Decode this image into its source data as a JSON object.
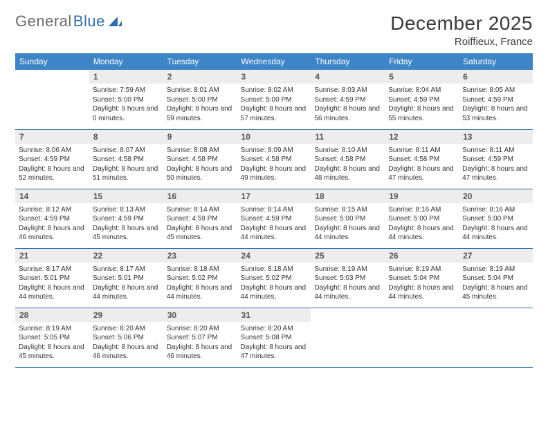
{
  "logo": {
    "part1": "General",
    "part2": "Blue"
  },
  "title": "December 2025",
  "location": "Roiffieux, France",
  "colors": {
    "header_bg": "#3d85c6",
    "header_text": "#ffffff",
    "row_border": "#2f6fb0",
    "daynum_bg": "#ededed",
    "daynum_text": "#555555",
    "body_text": "#333333",
    "logo_gray": "#6a6a6a",
    "logo_blue": "#2f6fb0",
    "page_bg": "#ffffff"
  },
  "weekdays": [
    "Sunday",
    "Monday",
    "Tuesday",
    "Wednesday",
    "Thursday",
    "Friday",
    "Saturday"
  ],
  "weeks": [
    [
      null,
      {
        "n": "1",
        "sr": "7:59 AM",
        "ss": "5:00 PM",
        "dl": "9 hours and 0 minutes."
      },
      {
        "n": "2",
        "sr": "8:01 AM",
        "ss": "5:00 PM",
        "dl": "8 hours and 59 minutes."
      },
      {
        "n": "3",
        "sr": "8:02 AM",
        "ss": "5:00 PM",
        "dl": "8 hours and 57 minutes."
      },
      {
        "n": "4",
        "sr": "8:03 AM",
        "ss": "4:59 PM",
        "dl": "8 hours and 56 minutes."
      },
      {
        "n": "5",
        "sr": "8:04 AM",
        "ss": "4:59 PM",
        "dl": "8 hours and 55 minutes."
      },
      {
        "n": "6",
        "sr": "8:05 AM",
        "ss": "4:59 PM",
        "dl": "8 hours and 53 minutes."
      }
    ],
    [
      {
        "n": "7",
        "sr": "8:06 AM",
        "ss": "4:59 PM",
        "dl": "8 hours and 52 minutes."
      },
      {
        "n": "8",
        "sr": "8:07 AM",
        "ss": "4:58 PM",
        "dl": "8 hours and 51 minutes."
      },
      {
        "n": "9",
        "sr": "8:08 AM",
        "ss": "4:58 PM",
        "dl": "8 hours and 50 minutes."
      },
      {
        "n": "10",
        "sr": "8:09 AM",
        "ss": "4:58 PM",
        "dl": "8 hours and 49 minutes."
      },
      {
        "n": "11",
        "sr": "8:10 AM",
        "ss": "4:58 PM",
        "dl": "8 hours and 48 minutes."
      },
      {
        "n": "12",
        "sr": "8:11 AM",
        "ss": "4:58 PM",
        "dl": "8 hours and 47 minutes."
      },
      {
        "n": "13",
        "sr": "8:11 AM",
        "ss": "4:59 PM",
        "dl": "8 hours and 47 minutes."
      }
    ],
    [
      {
        "n": "14",
        "sr": "8:12 AM",
        "ss": "4:59 PM",
        "dl": "8 hours and 46 minutes."
      },
      {
        "n": "15",
        "sr": "8:13 AM",
        "ss": "4:59 PM",
        "dl": "8 hours and 45 minutes."
      },
      {
        "n": "16",
        "sr": "8:14 AM",
        "ss": "4:59 PM",
        "dl": "8 hours and 45 minutes."
      },
      {
        "n": "17",
        "sr": "8:14 AM",
        "ss": "4:59 PM",
        "dl": "8 hours and 44 minutes."
      },
      {
        "n": "18",
        "sr": "8:15 AM",
        "ss": "5:00 PM",
        "dl": "8 hours and 44 minutes."
      },
      {
        "n": "19",
        "sr": "8:16 AM",
        "ss": "5:00 PM",
        "dl": "8 hours and 44 minutes."
      },
      {
        "n": "20",
        "sr": "8:16 AM",
        "ss": "5:00 PM",
        "dl": "8 hours and 44 minutes."
      }
    ],
    [
      {
        "n": "21",
        "sr": "8:17 AM",
        "ss": "5:01 PM",
        "dl": "8 hours and 44 minutes."
      },
      {
        "n": "22",
        "sr": "8:17 AM",
        "ss": "5:01 PM",
        "dl": "8 hours and 44 minutes."
      },
      {
        "n": "23",
        "sr": "8:18 AM",
        "ss": "5:02 PM",
        "dl": "8 hours and 44 minutes."
      },
      {
        "n": "24",
        "sr": "8:18 AM",
        "ss": "5:02 PM",
        "dl": "8 hours and 44 minutes."
      },
      {
        "n": "25",
        "sr": "8:19 AM",
        "ss": "5:03 PM",
        "dl": "8 hours and 44 minutes."
      },
      {
        "n": "26",
        "sr": "8:19 AM",
        "ss": "5:04 PM",
        "dl": "8 hours and 44 minutes."
      },
      {
        "n": "27",
        "sr": "8:19 AM",
        "ss": "5:04 PM",
        "dl": "8 hours and 45 minutes."
      }
    ],
    [
      {
        "n": "28",
        "sr": "8:19 AM",
        "ss": "5:05 PM",
        "dl": "8 hours and 45 minutes."
      },
      {
        "n": "29",
        "sr": "8:20 AM",
        "ss": "5:06 PM",
        "dl": "8 hours and 46 minutes."
      },
      {
        "n": "30",
        "sr": "8:20 AM",
        "ss": "5:07 PM",
        "dl": "8 hours and 46 minutes."
      },
      {
        "n": "31",
        "sr": "8:20 AM",
        "ss": "5:08 PM",
        "dl": "8 hours and 47 minutes."
      },
      null,
      null,
      null
    ]
  ],
  "labels": {
    "sunrise": "Sunrise:",
    "sunset": "Sunset:",
    "daylight": "Daylight:"
  }
}
